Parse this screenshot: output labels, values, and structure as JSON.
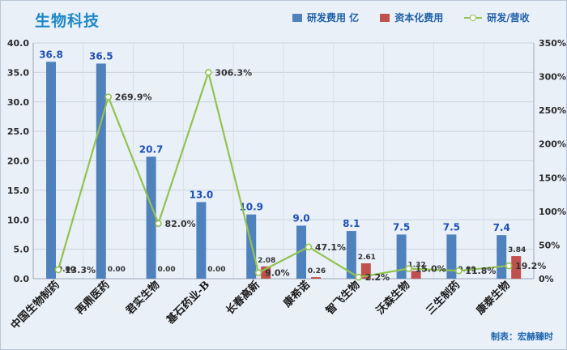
{
  "title": "生物科技",
  "credit": "制表：宏赫臻时",
  "colors": {
    "rd": "#4f81bd",
    "capex": "#c0504d",
    "ratio": "#92c24f"
  },
  "legend": {
    "rd": "研发费用 亿",
    "capex": "资本化费用",
    "ratio": "研发/营收"
  },
  "chart_data": {
    "type": "bar",
    "categories": [
      "中国生物制药",
      "再鼎医药",
      "君实生物",
      "基石药业-B",
      "长春高新",
      "康希诺",
      "智飞生物",
      "沃森生物",
      "三生制药",
      "康泰生物"
    ],
    "series": [
      {
        "name": "研发费用 亿",
        "type": "bar",
        "axis": "left",
        "values": [
          36.8,
          36.5,
          20.7,
          13.0,
          10.9,
          9.0,
          8.1,
          7.5,
          7.5,
          7.4
        ],
        "labels": [
          "36.8",
          "36.5",
          "20.7",
          "13.0",
          "10.9",
          "9.0",
          "8.1",
          "7.5",
          "7.5",
          "7.4"
        ]
      },
      {
        "name": "资本化费用",
        "type": "bar",
        "axis": "left",
        "values": [
          0.0,
          0.0,
          0.0,
          0.0,
          2.08,
          0.26,
          2.61,
          1.32,
          0.0,
          3.84
        ],
        "labels": [
          "0.00",
          "0.00",
          "0.00",
          "0.00",
          "2.08",
          "0.26",
          "2.61",
          "1.32",
          "0.00",
          "3.84"
        ]
      },
      {
        "name": "研发/营收",
        "type": "line",
        "axis": "right",
        "values": [
          13.3,
          269.9,
          82.0,
          306.3,
          9.0,
          47.1,
          2.2,
          15.0,
          11.8,
          19.2
        ],
        "labels": [
          "13.3%",
          "269.9%",
          "82.0%",
          "306.3%",
          "9.0%",
          "47.1%",
          "2.2%",
          "15.0%",
          "11.8%",
          "19.2%"
        ]
      }
    ],
    "y_left": {
      "min": 0,
      "max": 40,
      "ticks": [
        "0.0",
        "5.0",
        "10.0",
        "15.0",
        "20.0",
        "25.0",
        "30.0",
        "35.0",
        "40.0"
      ]
    },
    "y_right": {
      "min": 0,
      "max": 350,
      "ticks": [
        "0%",
        "50%",
        "100%",
        "150%",
        "200%",
        "250%",
        "300%",
        "350%"
      ]
    },
    "grid": true,
    "legend_position": "top-right"
  }
}
